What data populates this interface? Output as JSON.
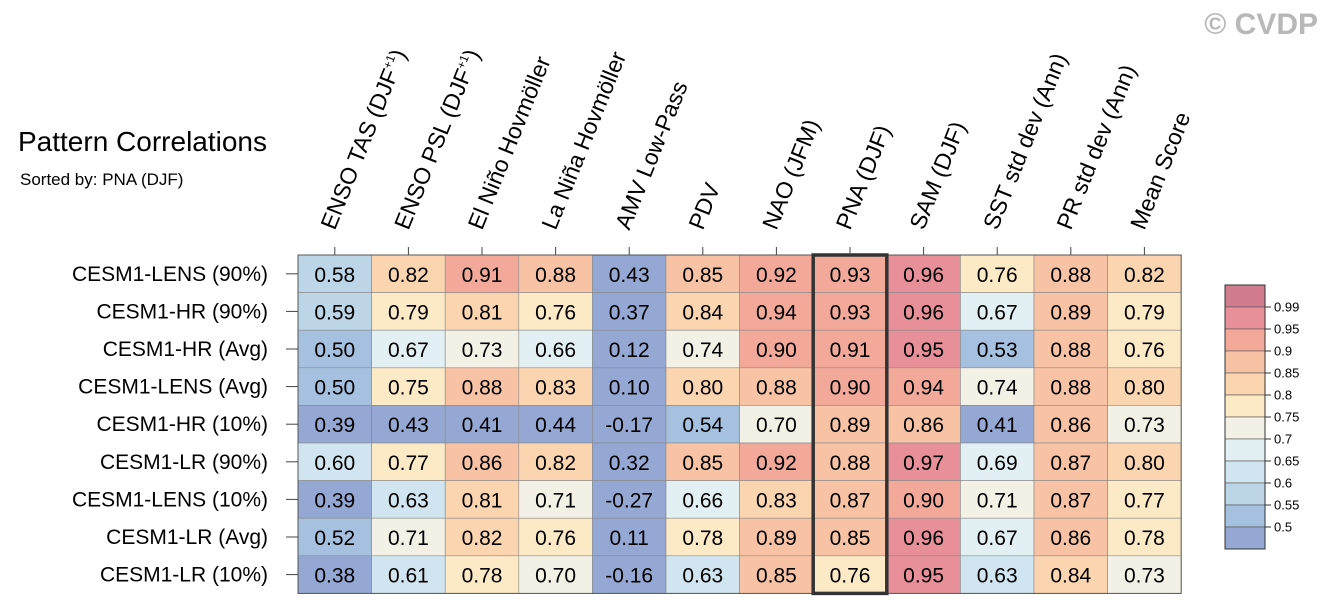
{
  "watermark": "© CVDP",
  "chart_data": {
    "type": "heatmap",
    "title": "Pattern Correlations",
    "subtitle": "Sorted by: PNA (DJF)",
    "columns": [
      {
        "label": "ENSO TAS (DJF",
        "sup": "+1",
        "tail": ")"
      },
      {
        "label": "ENSO PSL (DJF",
        "sup": "+1",
        "tail": ")"
      },
      {
        "label": "El Niño Hovmöller",
        "sup": "",
        "tail": ""
      },
      {
        "label": "La Niña Hovmöller",
        "sup": "",
        "tail": ""
      },
      {
        "label": "AMV Low-Pass",
        "sup": "",
        "tail": ""
      },
      {
        "label": "PDV",
        "sup": "",
        "tail": ""
      },
      {
        "label": "NAO (JFM)",
        "sup": "",
        "tail": ""
      },
      {
        "label": "PNA (DJF)",
        "sup": "",
        "tail": ""
      },
      {
        "label": "SAM (DJF)",
        "sup": "",
        "tail": ""
      },
      {
        "label": "SST std dev (Ann)",
        "sup": "",
        "tail": ""
      },
      {
        "label": "PR std dev (Ann)",
        "sup": "",
        "tail": ""
      },
      {
        "label": "Mean Score",
        "sup": "",
        "tail": ""
      }
    ],
    "rows": [
      "CESM1-LENS (90%)",
      "CESM1-HR (90%)",
      "CESM1-HR (Avg)",
      "CESM1-LENS (Avg)",
      "CESM1-HR (10%)",
      "CESM1-LR (90%)",
      "CESM1-LENS (10%)",
      "CESM1-LR (Avg)",
      "CESM1-LR (10%)"
    ],
    "values": [
      [
        "0.58",
        "0.82",
        "0.91",
        "0.88",
        "0.43",
        "0.85",
        "0.92",
        "0.93",
        "0.96",
        "0.76",
        "0.88",
        "0.82"
      ],
      [
        "0.59",
        "0.79",
        "0.81",
        "0.76",
        "0.37",
        "0.84",
        "0.94",
        "0.93",
        "0.96",
        "0.67",
        "0.89",
        "0.79"
      ],
      [
        "0.50",
        "0.67",
        "0.73",
        "0.66",
        "0.12",
        "0.74",
        "0.90",
        "0.91",
        "0.95",
        "0.53",
        "0.88",
        "0.76"
      ],
      [
        "0.50",
        "0.75",
        "0.88",
        "0.83",
        "0.10",
        "0.80",
        "0.88",
        "0.90",
        "0.94",
        "0.74",
        "0.88",
        "0.80"
      ],
      [
        "0.39",
        "0.43",
        "0.41",
        "0.44",
        "-0.17",
        "0.54",
        "0.70",
        "0.89",
        "0.86",
        "0.41",
        "0.86",
        "0.73"
      ],
      [
        "0.60",
        "0.77",
        "0.86",
        "0.82",
        "0.32",
        "0.85",
        "0.92",
        "0.88",
        "0.97",
        "0.69",
        "0.87",
        "0.80"
      ],
      [
        "0.39",
        "0.63",
        "0.81",
        "0.71",
        "-0.27",
        "0.66",
        "0.83",
        "0.87",
        "0.90",
        "0.71",
        "0.87",
        "0.77"
      ],
      [
        "0.52",
        "0.71",
        "0.82",
        "0.76",
        "0.11",
        "0.78",
        "0.89",
        "0.85",
        "0.96",
        "0.67",
        "0.86",
        "0.78"
      ],
      [
        "0.38",
        "0.61",
        "0.78",
        "0.70",
        "-0.16",
        "0.63",
        "0.85",
        "0.76",
        "0.95",
        "0.63",
        "0.84",
        "0.73"
      ]
    ],
    "highlighted_column": "PNA (DJF)",
    "color_levels": [
      {
        "min": 0.99,
        "color": "#d27d8e"
      },
      {
        "min": 0.95,
        "color": "#e8909a"
      },
      {
        "min": 0.9,
        "color": "#f2a99a"
      },
      {
        "min": 0.85,
        "color": "#f8c3a5"
      },
      {
        "min": 0.8,
        "color": "#fbd5b0"
      },
      {
        "min": 0.75,
        "color": "#fce9c5"
      },
      {
        "min": 0.7,
        "color": "#f3f1e6"
      },
      {
        "min": 0.65,
        "color": "#e2eff3"
      },
      {
        "min": 0.6,
        "color": "#d0e5ef"
      },
      {
        "min": 0.55,
        "color": "#bcd6e8"
      },
      {
        "min": 0.5,
        "color": "#a5c1df"
      },
      {
        "min": -99,
        "color": "#94a8d3"
      }
    ],
    "legend_ticks": [
      "0.99",
      "0.95",
      "0.9",
      "0.85",
      "0.8",
      "0.75",
      "0.7",
      "0.65",
      "0.6",
      "0.55",
      "0.5"
    ],
    "colors": {
      "highlight_border": "#333333",
      "grid_border": "#888888"
    }
  }
}
